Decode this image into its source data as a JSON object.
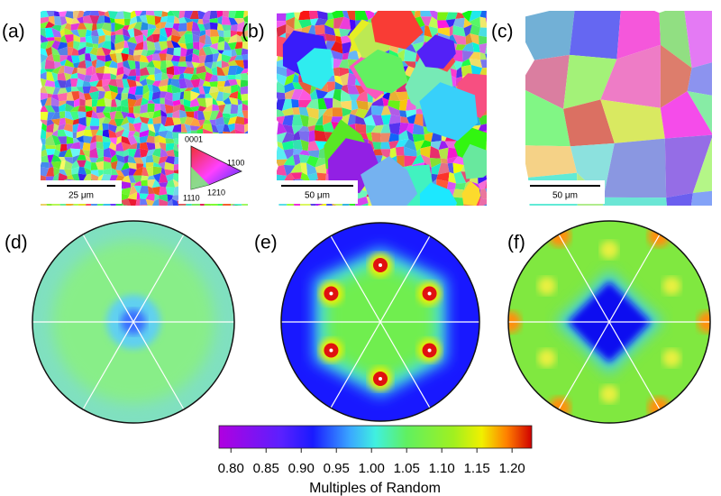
{
  "panels": [
    {
      "label": "(a)",
      "scale_bar": "25 μm",
      "legend": {
        "top": "0001",
        "right": "1100",
        "bottom_right": "1210",
        "bottom_left": "1110"
      }
    },
    {
      "label": "(b)",
      "scale_bar": "50 μm"
    },
    {
      "label": "(c)",
      "scale_bar": "50 μm"
    },
    {
      "label": "(d)"
    },
    {
      "label": "(e)"
    },
    {
      "label": "(f)"
    }
  ],
  "colorbar": {
    "lim": [
      0.783,
      1.228
    ],
    "ticks": [
      {
        "value": 0.8,
        "label": "0.80"
      },
      {
        "value": 0.85,
        "label": "0.85"
      },
      {
        "value": 0.9,
        "label": "0.90"
      },
      {
        "value": 0.95,
        "label": "0.95"
      },
      {
        "value": 1.0,
        "label": "1.00"
      },
      {
        "value": 1.05,
        "label": "1.05"
      },
      {
        "value": 1.1,
        "label": "1.10"
      },
      {
        "value": 1.15,
        "label": "1.15"
      },
      {
        "value": 1.2,
        "label": "1.20"
      }
    ],
    "label": "Multiples of Random"
  }
}
